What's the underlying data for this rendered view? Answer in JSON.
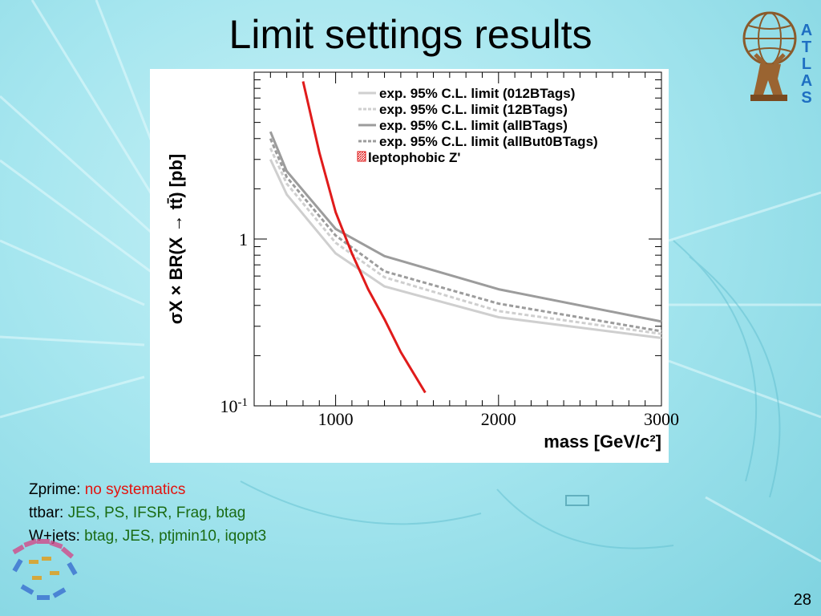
{
  "slide": {
    "title": "Limit settings results",
    "page_number": "28"
  },
  "logo": {
    "letters": [
      "A",
      "T",
      "L",
      "A",
      "S"
    ]
  },
  "notes": [
    {
      "label": "Zprime: ",
      "value": "no systematics",
      "color": "#e3140f"
    },
    {
      "label": "ttbar: ",
      "value": "JES, PS, IFSR, Frag, btag",
      "color": "#1a6b14"
    },
    {
      "label": "W+jets: ",
      "value": "btag, JES, ptjmin10, iqopt3",
      "color": "#1a6b14"
    }
  ],
  "chart_data": {
    "type": "line",
    "xlim": [
      500,
      3000
    ],
    "ylim": [
      0.1,
      10
    ],
    "yscale": "log",
    "ylabel": "σX × BR(X → tt̄) [pb]",
    "xlabel": "mass [GeV/c²]",
    "x_ticks": [
      "1000",
      "2000",
      "3000"
    ],
    "y_ticks": [
      {
        "value": 1,
        "label": "1"
      },
      {
        "value": 0.1,
        "label": "10",
        "sup": "-1"
      }
    ],
    "legend_position": "top-right",
    "series": [
      {
        "name": "exp. 95% C.L. limit (012BTags)",
        "color": "#cfcfcf",
        "dash": "solid",
        "x": [
          600,
          700,
          1000,
          1300,
          2000,
          3000
        ],
        "y": [
          3.0,
          1.85,
          0.82,
          0.52,
          0.34,
          0.255
        ]
      },
      {
        "name": "exp. 95% C.L. limit (12BTags)",
        "color": "#cfcfcf",
        "dash": "dashed",
        "x": [
          600,
          700,
          1000,
          1300,
          2000,
          3000
        ],
        "y": [
          3.5,
          2.15,
          0.95,
          0.59,
          0.37,
          0.27
        ]
      },
      {
        "name": "exp. 95% C.L. limit (allBTags)",
        "color": "#9c9c9c",
        "dash": "solid",
        "x": [
          600,
          700,
          1000,
          1300,
          2000,
          3000
        ],
        "y": [
          4.4,
          2.55,
          1.15,
          0.79,
          0.5,
          0.32
        ]
      },
      {
        "name": "exp. 95% C.L. limit (allBut0BTags)",
        "color": "#9c9c9c",
        "dash": "dashed",
        "x": [
          600,
          700,
          1000,
          1300,
          2000,
          3000
        ],
        "y": [
          4.0,
          2.35,
          1.05,
          0.64,
          0.41,
          0.28
        ]
      },
      {
        "name": "leptophobic Z'",
        "color": "#e01b1b",
        "dash": "solid",
        "marker": "hatched",
        "x": [
          800,
          900,
          1000,
          1100,
          1200,
          1300,
          1400,
          1550
        ],
        "y": [
          8.8,
          3.3,
          1.45,
          0.82,
          0.5,
          0.33,
          0.21,
          0.12
        ]
      }
    ]
  }
}
